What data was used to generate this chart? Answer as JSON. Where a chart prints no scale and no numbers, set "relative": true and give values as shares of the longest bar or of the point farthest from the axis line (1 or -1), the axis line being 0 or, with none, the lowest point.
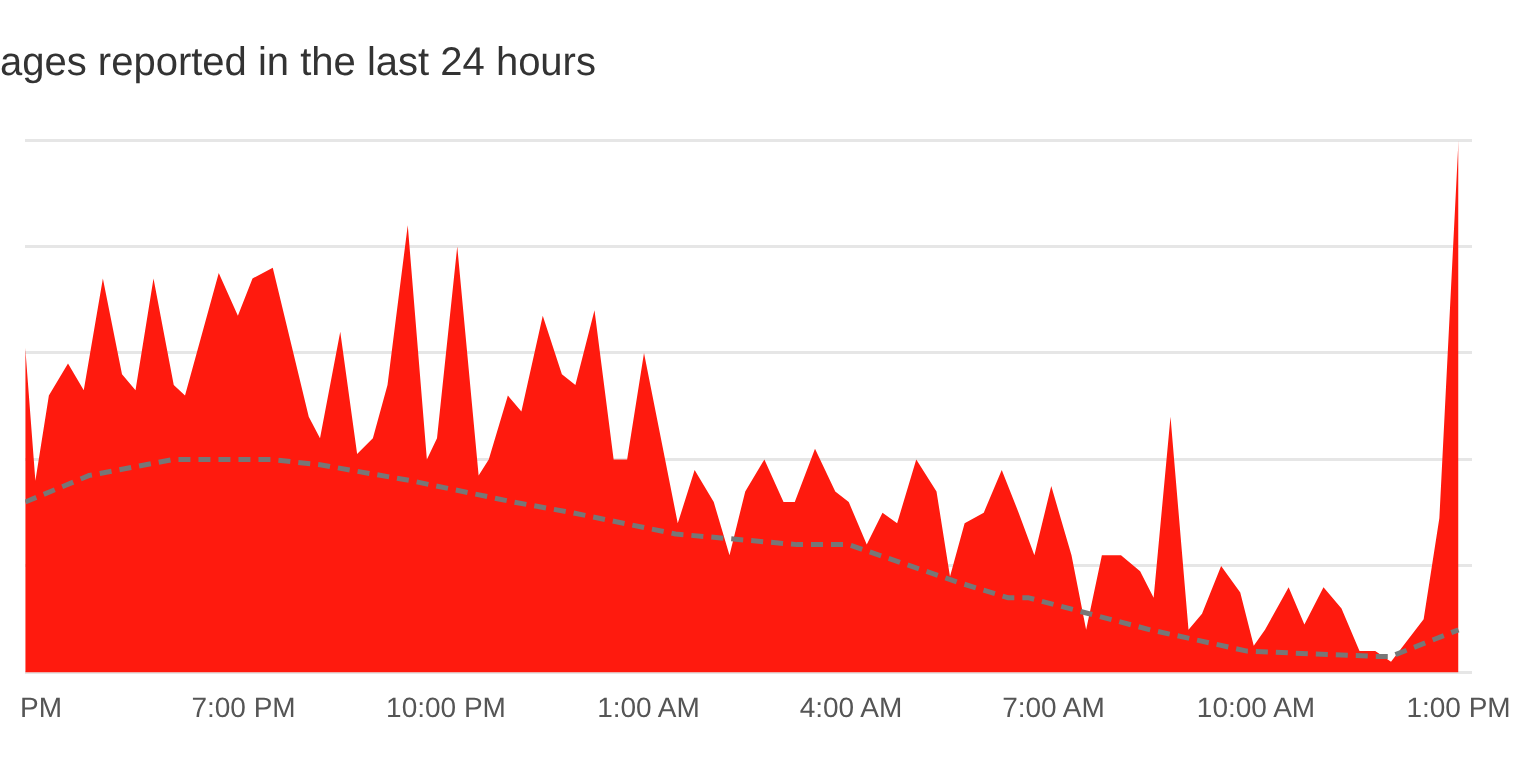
{
  "chart_data": {
    "type": "area",
    "title": "ages reported in the last 24 hours",
    "relative": true,
    "grid": "y",
    "legend": false,
    "marker": "none",
    "xlim": [
      "--01-01T15:46",
      "--01-02T13:12"
    ],
    "xticks": [
      {
        "value": "--01-01T16:00",
        "label": "PM"
      },
      {
        "value": "--01-01T19:00",
        "label": "7:00 PM"
      },
      {
        "value": "--01-01T22:00",
        "label": "10:00 PM"
      },
      {
        "value": "--01-02T01:00",
        "label": "1:00 AM"
      },
      {
        "value": "--01-02T04:00",
        "label": "4:00 AM"
      },
      {
        "value": "--01-02T07:00",
        "label": "7:00 AM"
      },
      {
        "value": "--01-02T10:00",
        "label": "10:00 AM"
      },
      {
        "value": "--01-02T13:00",
        "label": "1:00 PM"
      }
    ],
    "series": [
      {
        "color": "#ff1a0e",
        "x": [
          "--01-01T15:46",
          "--01-01T15:55",
          "--01-01T16:07",
          "--01-01T16:24",
          "--01-01T16:38",
          "--01-01T16:55",
          "--01-01T17:12",
          "--01-01T17:24",
          "--01-01T17:40",
          "--01-01T17:58",
          "--01-01T18:08",
          "--01-01T18:38",
          "--01-01T18:55",
          "--01-01T19:08",
          "--01-01T19:26",
          "--01-01T19:58",
          "--01-01T20:08",
          "--01-01T20:26",
          "--01-01T20:41",
          "--01-01T20:55",
          "--01-01T21:08",
          "--01-01T21:26",
          "--01-01T21:43",
          "--01-01T21:52",
          "--01-01T22:10",
          "--01-01T22:29",
          "--01-01T22:38",
          "--01-01T22:55",
          "--01-01T23:07",
          "--01-01T23:26",
          "--01-01T23:43",
          "--01-01T23:55",
          "--01-02T00:12",
          "--01-02T00:29",
          "--01-02T00:41",
          "--01-02T00:56",
          "--01-02T01:26",
          "--01-02T01:41",
          "--01-02T01:58",
          "--01-02T02:12",
          "--01-02T02:26",
          "--01-02T02:43",
          "--01-02T03:00",
          "--01-02T03:10",
          "--01-02T03:28",
          "--01-02T03:46",
          "--01-02T03:58",
          "--01-02T04:14",
          "--01-02T04:28",
          "--01-02T04:41",
          "--01-02T04:58",
          "--01-02T05:16",
          "--01-02T05:28",
          "--01-02T05:41",
          "--01-02T05:58",
          "--01-02T06:14",
          "--01-02T06:29",
          "--01-02T06:43",
          "--01-02T06:58",
          "--01-02T07:16",
          "--01-02T07:29",
          "--01-02T07:43",
          "--01-02T08:00",
          "--01-02T08:17",
          "--01-02T08:29",
          "--01-02T08:44",
          "--01-02T09:00",
          "--01-02T09:12",
          "--01-02T09:29",
          "--01-02T09:46",
          "--01-02T09:58",
          "--01-02T10:08",
          "--01-02T10:29",
          "--01-02T10:43",
          "--01-02T11:00",
          "--01-02T11:16",
          "--01-02T11:32",
          "--01-02T11:46",
          "--01-02T12:00",
          "--01-02T12:29",
          "--01-02T12:43",
          "--01-02T13:00"
        ],
        "values": [
          0.61,
          0.36,
          0.52,
          0.58,
          0.53,
          0.74,
          0.56,
          0.53,
          0.74,
          0.54,
          0.52,
          0.75,
          0.67,
          0.74,
          0.76,
          0.48,
          0.44,
          0.64,
          0.41,
          0.44,
          0.54,
          0.84,
          0.4,
          0.44,
          0.8,
          0.37,
          0.4,
          0.52,
          0.49,
          0.67,
          0.56,
          0.54,
          0.68,
          0.4,
          0.4,
          0.6,
          0.28,
          0.38,
          0.32,
          0.22,
          0.34,
          0.4,
          0.32,
          0.32,
          0.42,
          0.34,
          0.32,
          0.24,
          0.3,
          0.28,
          0.4,
          0.34,
          0.18,
          0.28,
          0.3,
          0.38,
          0.3,
          0.22,
          0.35,
          0.22,
          0.08,
          0.22,
          0.22,
          0.19,
          0.14,
          0.48,
          0.08,
          0.11,
          0.2,
          0.15,
          0.05,
          0.08,
          0.16,
          0.09,
          0.16,
          0.12,
          0.04,
          0.04,
          0.02,
          0.1,
          0.29,
          1.0
        ]
      },
      {
        "type": "line",
        "color": "#777777",
        "line_style": "dashed",
        "x": [
          "--01-01T15:46",
          "--01-01T16:43",
          "--01-01T17:58",
          "--01-01T19:24",
          "--01-01T20:08",
          "--01-01T21:29",
          "--01-01T23:00",
          "--01-01T23:52",
          "--01-02T01:24",
          "--01-02T03:12",
          "--01-02T03:58",
          "--01-02T05:34",
          "--01-02T06:20",
          "--01-02T06:38",
          "--01-02T08:26",
          "--01-02T09:52",
          "--01-02T11:46",
          "--01-02T12:00",
          "--01-02T13:00"
        ],
        "values": [
          0.32,
          0.37,
          0.4,
          0.4,
          0.39,
          0.36,
          0.32,
          0.3,
          0.26,
          0.24,
          0.24,
          0.17,
          0.14,
          0.14,
          0.08,
          0.04,
          0.03,
          0.03,
          0.08
        ]
      }
    ]
  }
}
